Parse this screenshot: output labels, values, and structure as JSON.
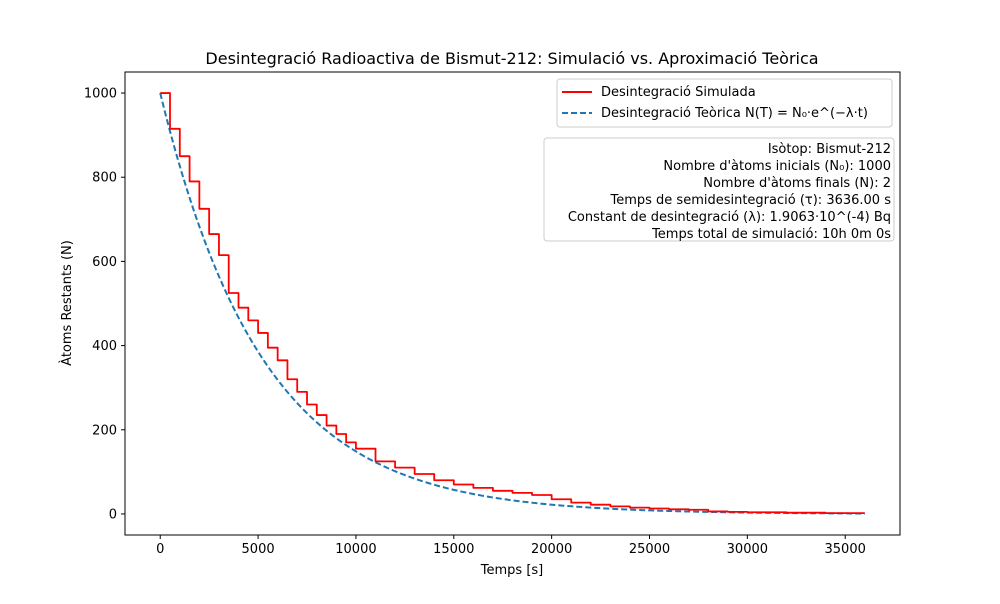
{
  "chart_data": {
    "type": "line",
    "title": "Desintegració Radioactiva de Bismut-212: Simulació vs. Aproximació Teòrica",
    "xlabel": "Temps [s]",
    "ylabel": "Àtoms Restants (N)",
    "xlim": [
      -1800,
      37800
    ],
    "ylim": [
      -50,
      1050
    ],
    "xticks": [
      0,
      5000,
      10000,
      15000,
      20000,
      25000,
      30000,
      35000
    ],
    "yticks": [
      0,
      200,
      400,
      600,
      800,
      1000
    ],
    "grid": false,
    "legend_position": "top-right",
    "series": [
      {
        "name": "Desintegració Simulada",
        "color": "#ff0000",
        "style": "solid",
        "x": [
          0,
          500,
          1000,
          1500,
          2000,
          2500,
          3000,
          3500,
          4000,
          4500,
          5000,
          5500,
          6000,
          6500,
          7000,
          7500,
          8000,
          8500,
          9000,
          9500,
          10000,
          11000,
          12000,
          13000,
          14000,
          15000,
          16000,
          17000,
          18000,
          19000,
          20000,
          21000,
          22000,
          23000,
          24000,
          25000,
          26000,
          27000,
          28000,
          29000,
          30000,
          31000,
          32000,
          33000,
          34000,
          35000,
          36000
        ],
        "y": [
          1000,
          915,
          850,
          790,
          725,
          665,
          615,
          525,
          490,
          460,
          430,
          395,
          365,
          320,
          290,
          260,
          235,
          210,
          190,
          170,
          155,
          125,
          110,
          95,
          80,
          70,
          62,
          55,
          50,
          45,
          35,
          27,
          22,
          18,
          15,
          13,
          11,
          10,
          6,
          5,
          4,
          4,
          3,
          3,
          2,
          2,
          2
        ]
      },
      {
        "name": "Desintegració Teòrica N(T) = N₀·e^(−λ·t)",
        "color": "#1f77b4",
        "style": "dashed",
        "function": "N0*exp(-lambda*t)",
        "N0": 1000,
        "lambda": 0.00019063,
        "x_range": [
          0,
          36000
        ]
      }
    ],
    "annotation": [
      "Isòtop: Bismut-212",
      "Nombre d'àtoms inicials (N₀): 1000",
      "Nombre d'àtoms finals (N): 2",
      "Temps de semidesintegració (τ): 3636.00 s",
      "Constant de desintegració (λ): 1.9063·10^(-4) Bq",
      "Temps total de simulació: 10h 0m 0s"
    ]
  }
}
